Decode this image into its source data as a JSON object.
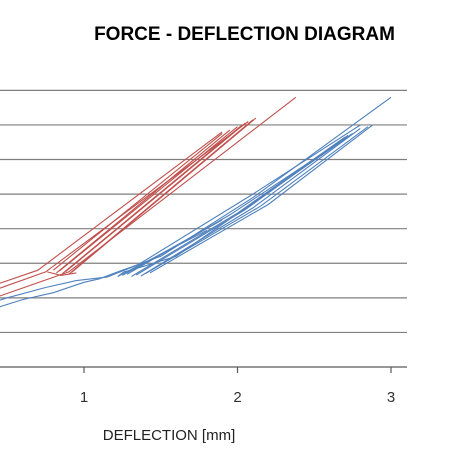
{
  "chart_data": {
    "type": "line",
    "title": "FORCE - DEFLECTION DIAGRAM",
    "xlabel": "DEFLECTION [mm]",
    "ylabel": "",
    "xlim": [
      -0.55,
      3.1
    ],
    "ylim": [
      0,
      8.3
    ],
    "x_ticks": [
      1,
      2,
      3
    ],
    "x_tick_labels": [
      "1",
      "2",
      "3"
    ],
    "grid": "horizontal",
    "legend": "none",
    "colors": {
      "red": "#c0504d",
      "blue": "#4f81bd",
      "grid": "#7f7f7f",
      "axis": "#595959"
    },
    "series": [
      {
        "color": "#c0504d",
        "traces": [
          [
            [
              -0.55,
              0.7
            ],
            [
              0.75,
              2.75
            ],
            [
              2.07,
              7.1
            ]
          ],
          [
            [
              -0.55,
              0.5
            ],
            [
              0.9,
              2.75
            ],
            [
              2.38,
              7.8
            ]
          ],
          [
            [
              -0.55,
              0.9
            ],
            [
              0.7,
              2.8
            ],
            [
              1.9,
              6.8
            ]
          ],
          [
            [
              0.76,
              2.75
            ],
            [
              0.85,
              2.65
            ],
            [
              0.95,
              2.72
            ]
          ],
          [
            [
              0.8,
              2.8
            ],
            [
              1.9,
              6.75
            ]
          ],
          [
            [
              0.82,
              2.72
            ],
            [
              1.95,
              6.85
            ]
          ],
          [
            [
              0.84,
              2.78
            ],
            [
              2.0,
              6.95
            ]
          ],
          [
            [
              0.86,
              2.7
            ],
            [
              2.03,
              7.0
            ]
          ],
          [
            [
              0.88,
              2.76
            ],
            [
              2.05,
              7.05
            ]
          ],
          [
            [
              0.9,
              2.68
            ],
            [
              2.1,
              7.15
            ]
          ],
          [
            [
              0.92,
              2.74
            ],
            [
              2.12,
              7.2
            ]
          ]
        ]
      },
      {
        "color": "#4f81bd",
        "traces": [
          [
            [
              -0.55,
              0.35
            ],
            [
              0.6,
              1.95
            ],
            [
              0.8,
              2.15
            ],
            [
              1.0,
              2.45
            ],
            [
              1.1,
              2.55
            ],
            [
              1.25,
              2.8
            ],
            [
              1.5,
              3.2
            ],
            [
              2.1,
              4.9
            ],
            [
              3.0,
              7.8
            ]
          ],
          [
            [
              -0.55,
              0.55
            ],
            [
              0.5,
              2.0
            ],
            [
              0.75,
              2.3
            ],
            [
              0.95,
              2.5
            ],
            [
              1.15,
              2.6
            ],
            [
              1.35,
              2.95
            ],
            [
              2.1,
              5.0
            ],
            [
              2.8,
              7.0
            ]
          ],
          [
            [
              1.22,
              2.62
            ],
            [
              1.26,
              2.75
            ],
            [
              1.32,
              2.82
            ],
            [
              1.38,
              2.9
            ],
            [
              1.6,
              3.2
            ],
            [
              2.2,
              5.05
            ],
            [
              2.75,
              6.75
            ]
          ],
          [
            [
              1.22,
              2.62
            ],
            [
              1.8,
              3.95
            ]
          ],
          [
            [
              1.25,
              2.65
            ],
            [
              1.9,
              4.25
            ]
          ],
          [
            [
              1.28,
              2.68
            ],
            [
              1.95,
              4.4
            ],
            [
              2.75,
              6.75
            ]
          ],
          [
            [
              1.31,
              2.62
            ],
            [
              2.0,
              4.45
            ],
            [
              2.7,
              6.65
            ]
          ],
          [
            [
              1.34,
              2.66
            ],
            [
              2.05,
              4.55
            ],
            [
              2.72,
              6.7
            ]
          ],
          [
            [
              1.37,
              2.63
            ],
            [
              2.1,
              4.6
            ],
            [
              2.8,
              6.9
            ]
          ],
          [
            [
              1.4,
              2.7
            ],
            [
              2.15,
              4.65
            ],
            [
              2.85,
              6.95
            ]
          ],
          [
            [
              1.43,
              2.72
            ],
            [
              2.2,
              4.7
            ],
            [
              2.88,
              7.0
            ]
          ]
        ]
      }
    ]
  }
}
